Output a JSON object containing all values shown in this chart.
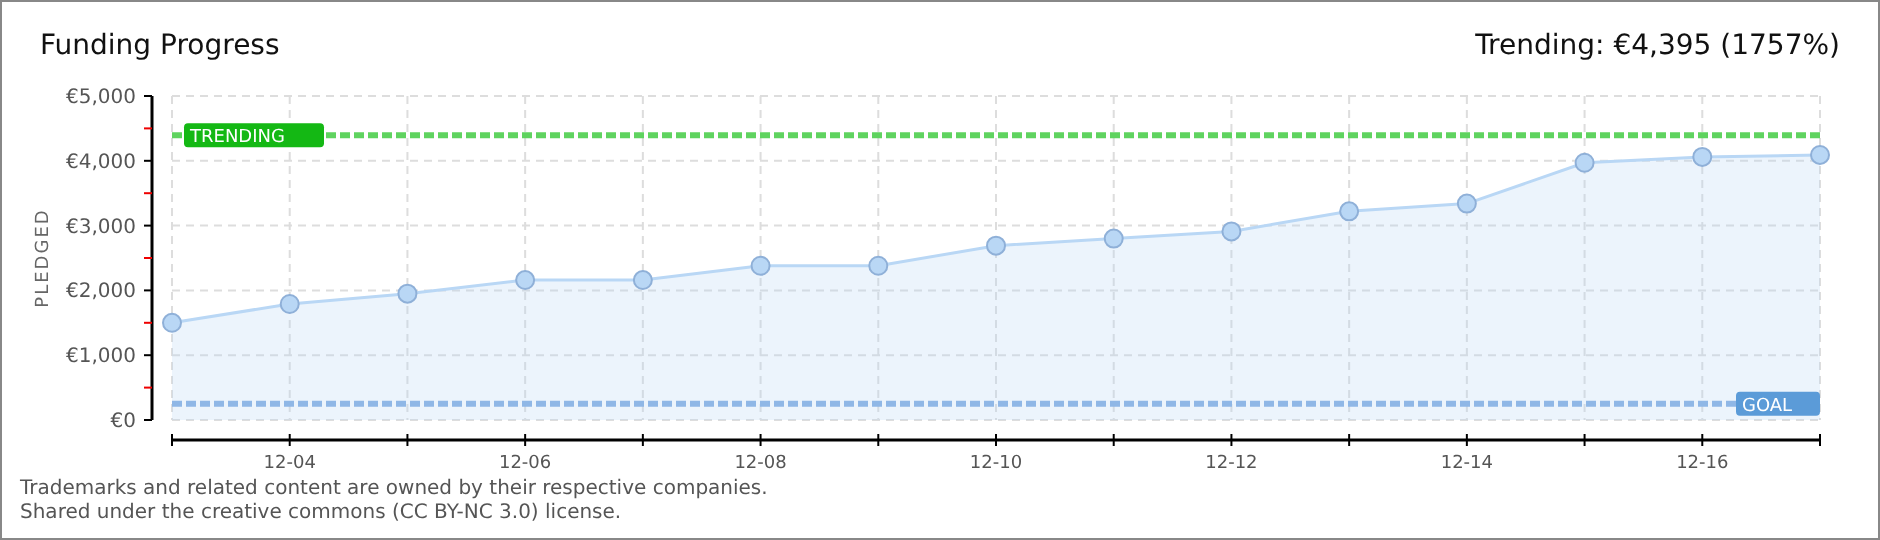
{
  "chart_data": {
    "type": "area",
    "title": "Funding Progress",
    "subtitle": "Trending: €4,395 (1757%)",
    "ylabel": "PLEDGED",
    "categories": [
      null,
      "12-04",
      null,
      "12-06",
      null,
      "12-08",
      null,
      "12-10",
      null,
      "12-12",
      null,
      "12-14",
      null,
      "12-16",
      null
    ],
    "series": [
      {
        "color": "#b9d7f5",
        "values": [
          1500,
          1790,
          1950,
          2160,
          2160,
          2380,
          2380,
          2690,
          2800,
          2910,
          3220,
          3340,
          3970,
          4060,
          4090
        ]
      }
    ],
    "ylim": [
      0,
      5000
    ],
    "yticks": [
      {
        "value": 0,
        "label": "€0"
      },
      {
        "value": 500,
        "label": null
      },
      {
        "value": 1000,
        "label": "€1,000"
      },
      {
        "value": 1500,
        "label": null
      },
      {
        "value": 2000,
        "label": "€2,000"
      },
      {
        "value": 2500,
        "label": null
      },
      {
        "value": 3000,
        "label": "€3,000"
      },
      {
        "value": 3500,
        "label": null
      },
      {
        "value": 4000,
        "label": "€4,000"
      },
      {
        "value": 4500,
        "label": null
      },
      {
        "value": 5000,
        "label": "€5,000"
      }
    ],
    "ref_lines": [
      {
        "axis": "y",
        "value": 4395,
        "label": "TRENDING",
        "color": "#5fd35f",
        "line_style": "dashed"
      },
      {
        "axis": "y",
        "value": 250,
        "label": "GOAL",
        "color": "#8fb7e6",
        "line_style": "dashed"
      }
    ],
    "grid": true,
    "marker": "circle",
    "annotations": [
      "Trademarks and related content are owned by their respective companies.",
      "Shared under the creative commons (CC BY-NC 3.0) license."
    ]
  }
}
